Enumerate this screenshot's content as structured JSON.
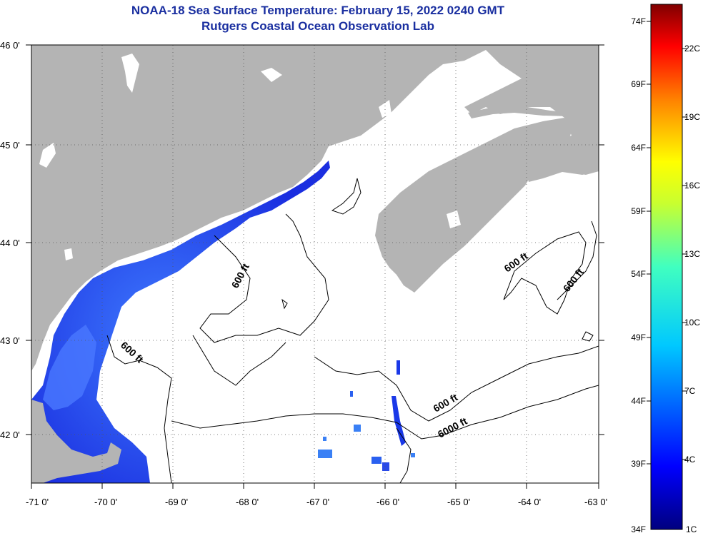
{
  "header": {
    "title": "NOAA-18 Sea Surface Temperature:  February 15, 2022 0240 GMT",
    "subtitle": "Rutgers Coastal Ocean Observation Lab"
  },
  "map": {
    "x_ticks": [
      "-71 0'",
      "-70 0'",
      "-69 0'",
      "-68 0'",
      "-67 0'",
      "-66 0'",
      "-65 0'",
      "-64 0'",
      "-63 0'"
    ],
    "y_ticks": [
      "46 0'",
      "45 0'",
      "44 0'",
      "43 0'",
      "42 0'"
    ],
    "contour_labels": [
      "600 ft",
      "600 ft",
      "600 ft",
      "600 ft",
      "600 ft",
      "6000 ft"
    ],
    "land_color": "#b4b4b4",
    "cloud_color": "#ffffff"
  },
  "colorbar": {
    "fahrenheit": [
      "74F",
      "69F",
      "64F",
      "59F",
      "54F",
      "49F",
      "44F",
      "39F",
      "34F"
    ],
    "celsius": [
      "22C",
      "19C",
      "16C",
      "13C",
      "10C",
      "7C",
      "4C",
      "1C"
    ]
  }
}
